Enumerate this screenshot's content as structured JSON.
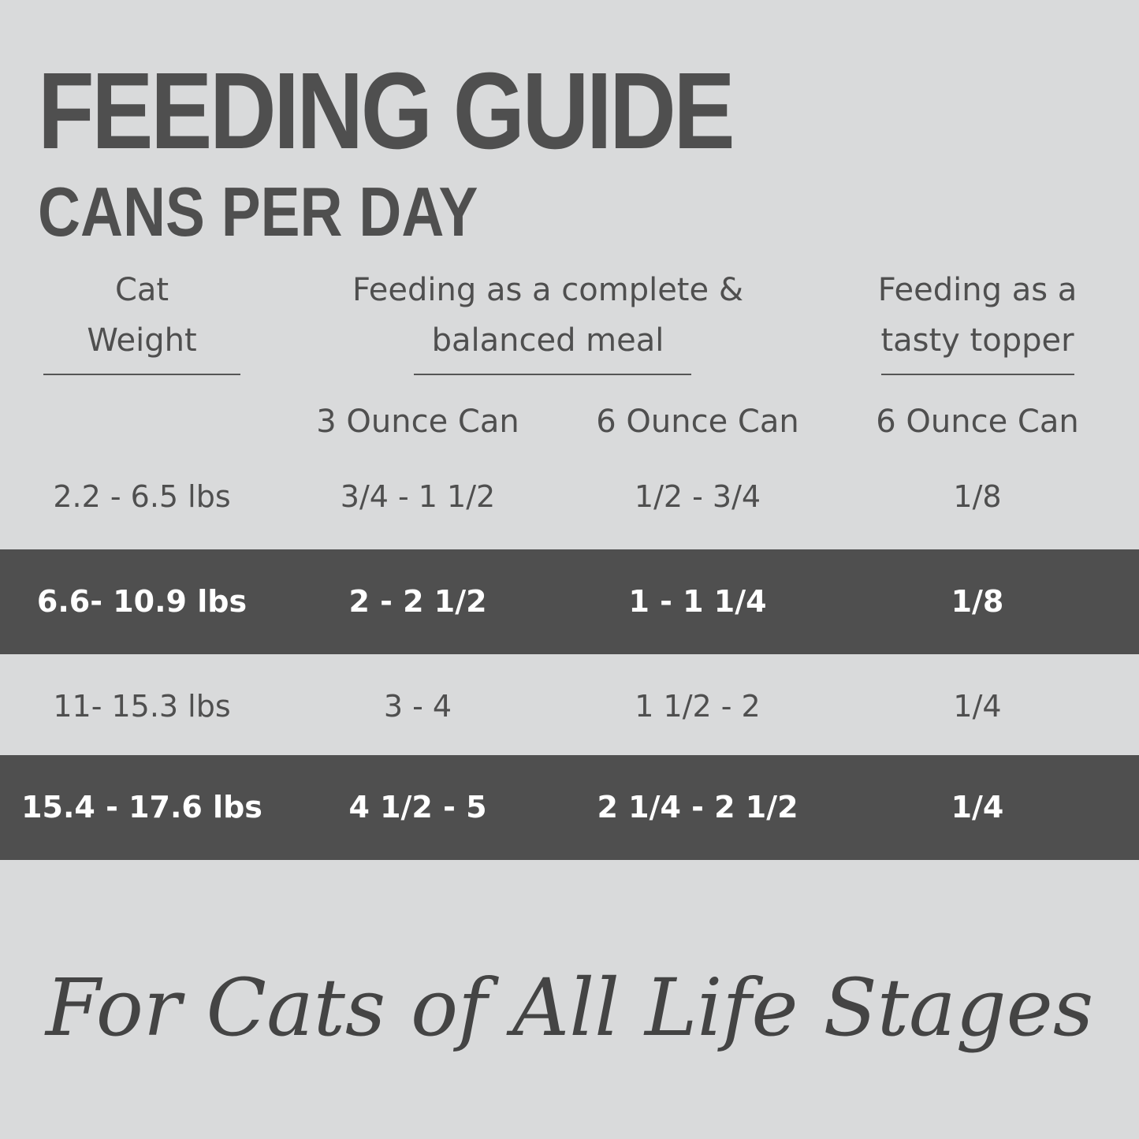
{
  "header": {
    "title": "FEEDING GUIDE",
    "subtitle": "CANS PER DAY"
  },
  "table": {
    "group_headers": [
      "Cat\nWeight",
      "Feeding as a complete &\nbalanced meal",
      "Feeding as a\ntasty topper"
    ],
    "sub_headers": [
      "3 Ounce Can",
      "6 Ounce Can",
      "6 Ounce Can"
    ],
    "rows": [
      [
        "2.2 - 6.5 lbs",
        "3/4 - 1 1/2",
        "1/2 - 3/4",
        "1/8"
      ],
      [
        "6.6- 10.9 lbs",
        "2 - 2 1/2",
        "1 - 1 1/4",
        "1/8"
      ],
      [
        "11- 15.3 lbs",
        "3 - 4",
        "1 1/2 - 2",
        "1/4"
      ],
      [
        "15.4 - 17.6 lbs",
        "4 1/2 - 5",
        "2 1/4 - 2 1/2",
        "1/4"
      ]
    ]
  },
  "footer": {
    "tagline": "For Cats of All Life Stages"
  }
}
